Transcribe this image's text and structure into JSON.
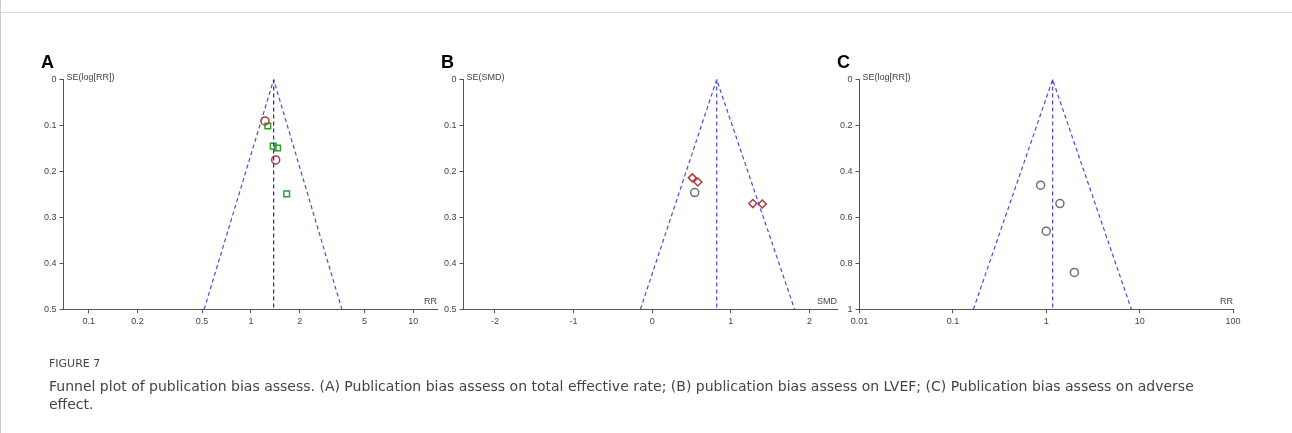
{
  "chart_data": [
    {
      "type": "scatter",
      "title": "A",
      "xlabel": "RR",
      "ylabel": "SE(log[RR])",
      "log": "x",
      "legend": false,
      "xlim": [
        0.07,
        14
      ],
      "xticks": [
        0.1,
        0.2,
        0.5,
        1,
        2,
        5,
        10
      ],
      "ylim": [
        0.5,
        0
      ],
      "yticks": [
        0,
        0.1,
        0.2,
        0.3,
        0.4,
        0.5
      ],
      "series": [
        {
          "type": "line",
          "color": "#4a4ae0",
          "line_style": "dashed",
          "marker": "none",
          "x": [
            0.515,
            1.38,
            3.63
          ],
          "values": [
            0.5,
            0,
            0.5
          ]
        },
        {
          "color": "#b03a3a",
          "marker": "circle",
          "x": [
            1.22,
            1.42
          ],
          "values": [
            0.09,
            0.175
          ]
        },
        {
          "color": "#2e9e2e",
          "marker": "square",
          "x": [
            1.27,
            1.37,
            1.46,
            1.66
          ],
          "values": [
            0.101,
            0.145,
            0.149,
            0.249
          ]
        }
      ],
      "ref_lines": [
        {
          "axis": "x",
          "value": 1.38,
          "color": "#2a2a7a",
          "line_style": "dashed"
        }
      ],
      "annotations": [
        "FIGURE 7",
        "Funnel plot of publication bias assess. (A) Publication bias assess on total effective rate; (B) publication bias assess on LVEF; (C) Publication bias assess on adverse effect."
      ]
    },
    {
      "type": "scatter",
      "title": "B",
      "xlabel": "SMD",
      "ylabel": "SE(SMD)",
      "legend": false,
      "xlim": [
        -2.4,
        2.35
      ],
      "xticks": [
        -2,
        -1,
        0,
        1,
        2
      ],
      "ylim": [
        0.5,
        0
      ],
      "yticks": [
        0,
        0.1,
        0.2,
        0.3,
        0.4,
        0.5
      ],
      "series": [
        {
          "type": "line",
          "color": "#4a4ae0",
          "line_style": "dashed",
          "marker": "none",
          "x": [
            -0.15,
            0.82,
            1.81
          ],
          "values": [
            0.5,
            0,
            0.5
          ]
        },
        {
          "color": "#b03a3a",
          "marker": "diamond",
          "x": [
            0.51,
            0.58,
            1.28,
            1.4
          ],
          "values": [
            0.214,
            0.223,
            0.27,
            0.271
          ]
        },
        {
          "color": "#707070",
          "marker": "circle",
          "x": [
            0.54
          ],
          "values": [
            0.246
          ]
        }
      ],
      "ref_lines": [
        {
          "axis": "x",
          "value": 0.82,
          "color": "#4a4ae0",
          "line_style": "dashed"
        }
      ]
    },
    {
      "type": "scatter",
      "title": "C",
      "xlabel": "RR",
      "ylabel": "SE(log[RR])",
      "log": "x",
      "legend": false,
      "xlim": [
        0.01,
        100
      ],
      "xticks": [
        0.01,
        0.1,
        1,
        10,
        100
      ],
      "ylim": [
        1,
        0
      ],
      "yticks": [
        0,
        0.2,
        0.4,
        0.6,
        0.8,
        1
      ],
      "series": [
        {
          "type": "line",
          "color": "#4a4ae0",
          "line_style": "dashed",
          "marker": "none",
          "x": [
            0.166,
            1.17,
            8.15
          ],
          "values": [
            1,
            0,
            1
          ]
        },
        {
          "color": "#707070",
          "marker": "circle",
          "x": [
            0.87,
            1.4,
            1.0,
            2.0
          ],
          "values": [
            0.46,
            0.54,
            0.66,
            0.84
          ]
        }
      ],
      "ref_lines": [
        {
          "axis": "x",
          "value": 1.17,
          "color": "#4a4ae0",
          "line_style": "dashed"
        }
      ]
    }
  ]
}
